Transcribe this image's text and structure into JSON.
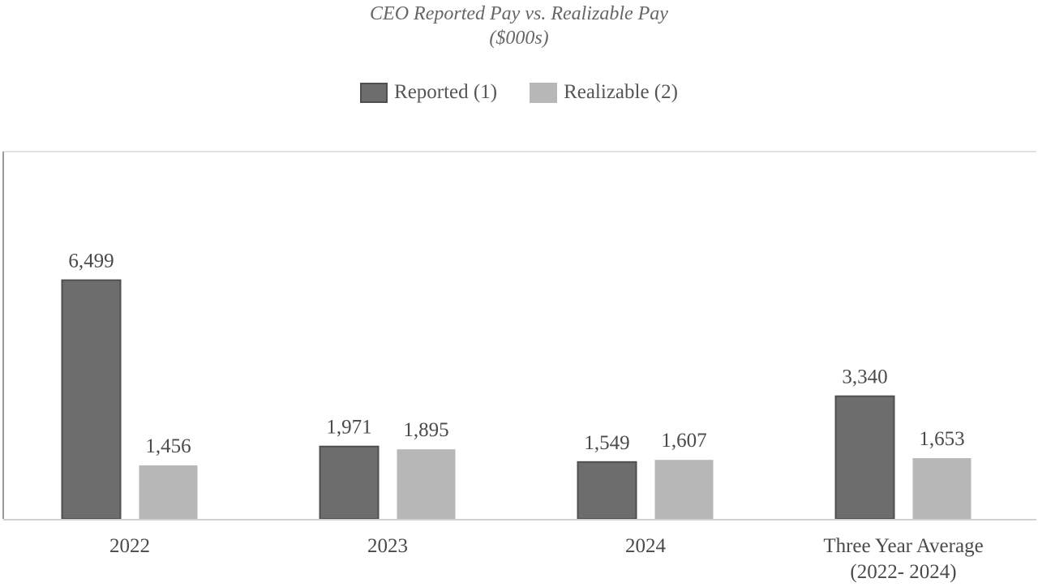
{
  "chart_data": {
    "type": "bar",
    "title": "CEO Reported Pay vs. Realizable Pay",
    "subtitle": "($000s)",
    "xlabel": "",
    "ylabel": "",
    "legend_position": "top",
    "categories": [
      [
        "2022"
      ],
      [
        "2023"
      ],
      [
        "2024"
      ],
      [
        "Three Year Average",
        "(2022- 2024)"
      ]
    ],
    "series": [
      {
        "name": "Reported (1)",
        "color": "#6d6d6d",
        "values": [
          6499,
          1971,
          1549,
          3340
        ],
        "labels": [
          "6,499",
          "1,971",
          "1,549",
          "3,340"
        ]
      },
      {
        "name": "Realizable (2)",
        "color": "#b7b7b7",
        "values": [
          1456,
          1895,
          1607,
          1653
        ],
        "labels": [
          "1,456",
          "1,895",
          "1,607",
          "1,653"
        ]
      }
    ],
    "ylim": [
      0,
      10000
    ],
    "grid": true
  }
}
